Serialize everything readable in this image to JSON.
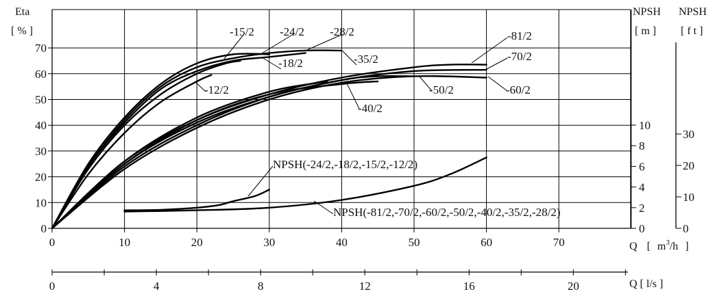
{
  "chart_data": {
    "type": "line",
    "title": "",
    "xlabel": "Q [ m³/h ]",
    "xlabel_parts": {
      "q": "Q",
      "open": "[",
      "m": "m",
      "exp": "3",
      "h": "/h",
      "close": "]"
    },
    "x2label": "Q [ l/s ]",
    "ylabel": "Eta",
    "yunit": "[ % ]",
    "y2label": "NPSH",
    "y2unit": "[ m ]",
    "y3label": "NPSH",
    "y3unit": "[ f t ]",
    "xlim": [
      0,
      80
    ],
    "ylim": [
      0,
      75
    ],
    "grid": true,
    "x_ticks": [
      "0",
      "10",
      "20",
      "30",
      "40",
      "50",
      "60",
      "70"
    ],
    "x2_ticks": [
      "0",
      "4",
      "8",
      "12",
      "16",
      "20"
    ],
    "y_ticks": [
      "0",
      "10",
      "20",
      "30",
      "40",
      "50",
      "60",
      "70"
    ],
    "y2_ticks": [
      "0",
      "2",
      "4",
      "6",
      "8",
      "10"
    ],
    "y3_ticks": [
      "0",
      "10",
      "20",
      "30"
    ],
    "series": [
      {
        "name": "-24/2",
        "x": [
          0,
          5,
          10,
          15,
          20,
          25,
          30
        ],
        "y": [
          0,
          25,
          43,
          56,
          64,
          67.5,
          67.5
        ]
      },
      {
        "name": "-18/2",
        "x": [
          0,
          5,
          10,
          15,
          20,
          25,
          30,
          35
        ],
        "y": [
          0,
          24,
          41,
          54,
          61,
          65,
          66.5,
          68
        ]
      },
      {
        "name": "-15/2",
        "x": [
          0,
          5,
          10,
          15,
          20,
          24,
          26
        ],
        "y": [
          0,
          23,
          40,
          52,
          60,
          64,
          65
        ]
      },
      {
        "name": "-12/2",
        "x": [
          0,
          5,
          10,
          15,
          20,
          22
        ],
        "y": [
          0,
          21,
          37,
          49,
          57,
          59.5
        ]
      },
      {
        "name": "-28/2",
        "x": [
          0,
          5,
          10,
          15,
          20,
          25,
          30,
          35,
          40
        ],
        "y": [
          0,
          24,
          42,
          55,
          62.5,
          66,
          68,
          69,
          69
        ]
      },
      {
        "name": "-81/2",
        "x": [
          0,
          10,
          20,
          30,
          40,
          50,
          55,
          60
        ],
        "y": [
          0,
          26,
          42,
          52,
          58.5,
          62.5,
          63.5,
          63.5
        ]
      },
      {
        "name": "-70/2",
        "x": [
          0,
          10,
          20,
          30,
          40,
          50,
          60
        ],
        "y": [
          0,
          25,
          41,
          51,
          57.5,
          61,
          61.5
        ]
      },
      {
        "name": "-60/2",
        "x": [
          0,
          10,
          20,
          30,
          40,
          50,
          60
        ],
        "y": [
          0,
          23,
          39,
          50,
          56.5,
          59,
          58.5
        ]
      },
      {
        "name": "-50/2",
        "x": [
          0,
          10,
          20,
          30,
          40,
          45,
          50
        ],
        "y": [
          0,
          24,
          40,
          51,
          57.5,
          59,
          59
        ]
      },
      {
        "name": "-40/2",
        "x": [
          0,
          10,
          20,
          30,
          40,
          45
        ],
        "y": [
          0,
          25,
          42,
          52,
          56,
          57
        ]
      },
      {
        "name": "-35/2",
        "x": [
          0,
          10,
          20,
          30,
          38
        ],
        "y": [
          0,
          26,
          43,
          53,
          57
        ]
      },
      {
        "name": "NPSH(-24/2,-18/2,-15/2,-12/2)",
        "x": [
          10,
          15,
          20,
          23,
          25,
          28,
          30
        ],
        "y": [
          7,
          7.2,
          8,
          9,
          10.5,
          12.5,
          15
        ]
      },
      {
        "name": "NPSH(-81/2,-70/2,-60/2,-50/2,-40/2,-35/2,-28/2)",
        "x": [
          10,
          20,
          30,
          40,
          50,
          55,
          60
        ],
        "y": [
          6.5,
          7,
          8,
          11,
          16.5,
          21,
          27.5
        ]
      }
    ],
    "labels": [
      {
        "text": "-15/2",
        "for": "-15/2"
      },
      {
        "text": "-24/2",
        "for": "-24/2"
      },
      {
        "text": "-28/2",
        "for": "-28/2"
      },
      {
        "text": "-18/2",
        "for": "-18/2"
      },
      {
        "text": "-35/2",
        "for": "-35/2"
      },
      {
        "text": "-12/2",
        "for": "-12/2"
      },
      {
        "text": "-81/2",
        "for": "-81/2"
      },
      {
        "text": "-70/2",
        "for": "-70/2"
      },
      {
        "text": "-50/2",
        "for": "-50/2"
      },
      {
        "text": "-60/2",
        "for": "-60/2"
      },
      {
        "text": "-40/2",
        "for": "-40/2"
      },
      {
        "text": "NPSH(-24/2,-18/2,-15/2,-12/2)",
        "for": "NPSH(-24/2,-18/2,-15/2,-12/2)"
      },
      {
        "text": "NPSH(-81/2,-70/2,-60/2,-50/2,-40/2,-35/2,-28/2)",
        "for": "NPSH(-81/2,-70/2,-60/2,-50/2,-40/2,-35/2,-28/2)"
      }
    ]
  }
}
